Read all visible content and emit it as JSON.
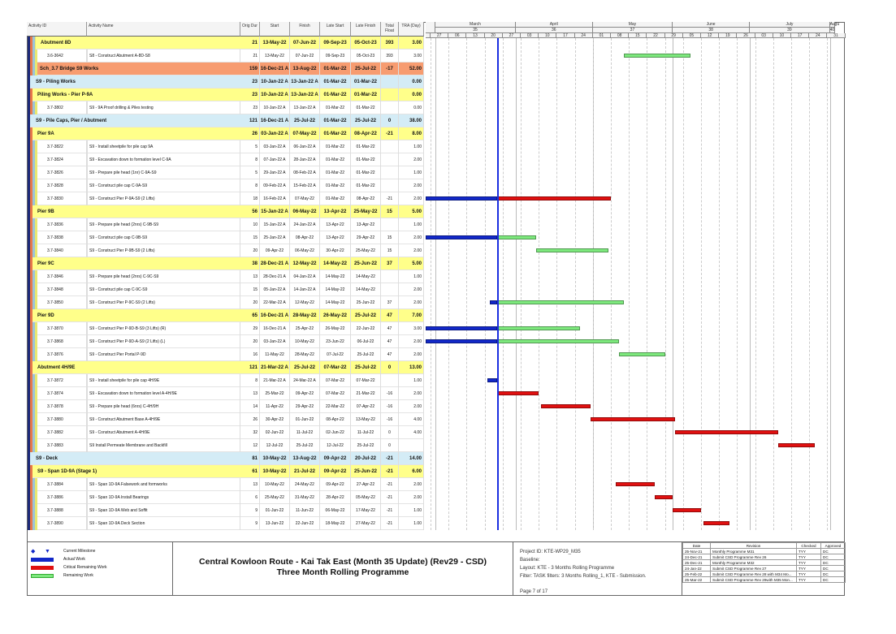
{
  "headers": {
    "id": "Activity ID",
    "name": "Activity Name",
    "dur": "Orig Dur",
    "start": "Start",
    "finish": "Finish",
    "ls": "Late Start",
    "lf": "Late Finish",
    "tf": "Total Float",
    "tra": "TRA (Day)"
  },
  "timeline": {
    "months": [
      {
        "label": "March",
        "week": "35",
        "from": "2022-03-01",
        "to": "2022-04-01"
      },
      {
        "label": "April",
        "week": "36",
        "from": "2022-04-01",
        "to": "2022-05-01"
      },
      {
        "label": "May",
        "week": "37",
        "from": "2022-05-01",
        "to": "2022-06-01"
      },
      {
        "label": "June",
        "week": "38",
        "from": "2022-06-01",
        "to": "2022-07-01"
      },
      {
        "label": "July",
        "week": "39",
        "from": "2022-07-01",
        "to": "2022-08-01"
      },
      {
        "label": "Augu",
        "week": "40",
        "from": "2022-08-01",
        "to": "2022-08-03"
      }
    ],
    "weeks": [
      "27",
      "06",
      "13",
      "20",
      "27",
      "03",
      "10",
      "17",
      "24",
      "01",
      "08",
      "15",
      "22",
      "29",
      "05",
      "12",
      "19",
      "26",
      "03",
      "10",
      "17",
      "24",
      "31"
    ],
    "first_week": "2022-02-27",
    "data_date": "2022-03-25"
  },
  "colors": {
    "actual": "#1228c8",
    "critical": "#e01010",
    "remaining": "#7de87d",
    "data_date": "#1a2ee0",
    "yellow": "#ffff8a",
    "orange": "#f79c70",
    "blue": "#d4ecf6"
  },
  "rows": [
    {
      "t": "y",
      "lv": 4,
      "name": "Abutment 8D",
      "dur": "21",
      "start": "13-May-22",
      "finish": "07-Jun-22",
      "ls": "09-Sep-23",
      "lf": "05-Oct-23",
      "tf": "393",
      "tra": "3.00"
    },
    {
      "id": "3.6-3642",
      "name": "S8 - Construct Abutment A-8D-S8",
      "dur": "21",
      "start": "13-May-22",
      "finish": "07-Jun-22",
      "ls": "09-Sep-23",
      "lf": "05-Oct-23",
      "tf": "393",
      "tra": "3.00"
    },
    {
      "t": "o",
      "lv": 1,
      "name": "Sch_3.7 Bridge S9 Works",
      "dur": "159",
      "start": "16-Dec-21 A",
      "finish": "13-Aug-22",
      "ls": "01-Mar-22",
      "lf": "25-Jul-22",
      "tf": "-17",
      "tra": "52.00"
    },
    {
      "t": "b",
      "lv": 2,
      "name": "S9 - Piling Works",
      "dur": "23",
      "start": "10-Jan-22 A",
      "finish": "13-Jan-22 A",
      "ls": "01-Mar-22",
      "lf": "01-Mar-22",
      "tf": "",
      "tra": "0.00"
    },
    {
      "t": "y",
      "lv": 3,
      "name": "Piling Works - Pier P-9A",
      "dur": "23",
      "start": "10-Jan-22 A",
      "finish": "13-Jan-22 A",
      "ls": "01-Mar-22",
      "lf": "01-Mar-22",
      "tf": "",
      "tra": "0.00"
    },
    {
      "id": "3.7-3802",
      "name": "S9 - 9A Proof drilling & Piles testing",
      "dur": "23",
      "start": "10-Jan-22 A",
      "finish": "13-Jan-22 A",
      "ls": "01-Mar-22",
      "lf": "01-Mar-22",
      "tf": "",
      "tra": "0.00"
    },
    {
      "t": "b",
      "lv": 2,
      "name": "S9 - Pile Caps, Pier / Abutment",
      "dur": "121",
      "start": "16-Dec-21 A",
      "finish": "25-Jul-22",
      "ls": "01-Mar-22",
      "lf": "25-Jul-22",
      "tf": "0",
      "tra": "38.00"
    },
    {
      "t": "y",
      "lv": 3,
      "name": "Pier 9A",
      "dur": "26",
      "start": "03-Jan-22 A",
      "finish": "07-May-22",
      "ls": "01-Mar-22",
      "lf": "08-Apr-22",
      "tf": "-21",
      "tra": "8.00"
    },
    {
      "id": "3.7-3822",
      "name": "S9 - Install sheetpile for pile cap 9A",
      "dur": "5",
      "start": "03-Jan-22 A",
      "finish": "06-Jan-22 A",
      "ls": "01-Mar-22",
      "lf": "01-Mar-22",
      "tf": "",
      "tra": "1.00"
    },
    {
      "id": "3.7-3824",
      "name": "S9 - Excavation down to formation level C-9A",
      "dur": "8",
      "start": "07-Jan-22 A",
      "finish": "28-Jan-22 A",
      "ls": "01-Mar-22",
      "lf": "01-Mar-22",
      "tf": "",
      "tra": "2.00"
    },
    {
      "id": "3.7-3826",
      "name": "S9 - Prepare pile head (1nr) C-9A-S9",
      "dur": "5",
      "start": "29-Jan-22 A",
      "finish": "08-Feb-22 A",
      "ls": "01-Mar-22",
      "lf": "01-Mar-22",
      "tf": "",
      "tra": "1.00"
    },
    {
      "id": "3.7-3828",
      "name": "S9 - Construct pile cap C-9A-S9",
      "dur": "8",
      "start": "09-Feb-22 A",
      "finish": "15-Feb-22 A",
      "ls": "01-Mar-22",
      "lf": "01-Mar-22",
      "tf": "",
      "tra": "2.00"
    },
    {
      "id": "3.7-3830",
      "name": "S9 - Construct Pier P-9A-S9 (2 Lifts)",
      "dur": "18",
      "start": "16-Feb-22 A",
      "finish": "07-May-22",
      "ls": "01-Mar-22",
      "lf": "08-Apr-22",
      "tf": "-21",
      "tra": "2.00"
    },
    {
      "t": "y",
      "lv": 3,
      "name": "Pier 9B",
      "dur": "56",
      "start": "15-Jan-22 A",
      "finish": "06-May-22",
      "ls": "13-Apr-22",
      "lf": "25-May-22",
      "tf": "15",
      "tra": "5.00"
    },
    {
      "id": "3.7-3836",
      "name": "S9 - Prepare pile head (2nrs) C-9B-S9",
      "dur": "10",
      "start": "15-Jan-22 A",
      "finish": "24-Jan-22 A",
      "ls": "13-Apr-22",
      "lf": "13-Apr-22",
      "tf": "",
      "tra": "1.00"
    },
    {
      "id": "3.7-3838",
      "name": "S9 - Construct pile cap C-9B-S9",
      "dur": "15",
      "start": "25-Jan-22 A",
      "finish": "08-Apr-22",
      "ls": "13-Apr-22",
      "lf": "29-Apr-22",
      "tf": "15",
      "tra": "2.00"
    },
    {
      "id": "3.7-3840",
      "name": "S9 - Construct Pier P-9B-S9 (2 Lifts)",
      "dur": "20",
      "start": "09-Apr-22",
      "finish": "06-May-22",
      "ls": "30-Apr-22",
      "lf": "25-May-22",
      "tf": "15",
      "tra": "2.00"
    },
    {
      "t": "y",
      "lv": 3,
      "name": "Pier 9C",
      "dur": "38",
      "start": "28-Dec-21 A",
      "finish": "12-May-22",
      "ls": "14-May-22",
      "lf": "25-Jun-22",
      "tf": "37",
      "tra": "5.00"
    },
    {
      "id": "3.7-3846",
      "name": "S9 - Prepare pile head (2nrs) C-9C-S9",
      "dur": "13",
      "start": "28-Dec-21 A",
      "finish": "04-Jan-22 A",
      "ls": "14-May-22",
      "lf": "14-May-22",
      "tf": "",
      "tra": "1.00"
    },
    {
      "id": "3.7-3848",
      "name": "S9 - Construct pile cap C-9C-S9",
      "dur": "15",
      "start": "05-Jan-22 A",
      "finish": "14-Jan-22 A",
      "ls": "14-May-22",
      "lf": "14-May-22",
      "tf": "",
      "tra": "2.00"
    },
    {
      "id": "3.7-3850",
      "name": "S9 - Construct Pier P-9C-S9 (2 Lifts)",
      "dur": "20",
      "start": "22-Mar-22 A",
      "finish": "12-May-22",
      "ls": "14-May-22",
      "lf": "25-Jun-22",
      "tf": "37",
      "tra": "2.00"
    },
    {
      "t": "y",
      "lv": 3,
      "name": "Pier 9D",
      "dur": "65",
      "start": "16-Dec-21 A",
      "finish": "28-May-22",
      "ls": "26-May-22",
      "lf": "25-Jul-22",
      "tf": "47",
      "tra": "7.00"
    },
    {
      "id": "3.7-3870",
      "name": "S9 - Construct Pier P-9D-B-S9 (3 Lifts) (R)",
      "dur": "29",
      "start": "16-Dec-21 A",
      "finish": "25-Apr-22",
      "ls": "26-May-22",
      "lf": "22-Jun-22",
      "tf": "47",
      "tra": "3.00"
    },
    {
      "id": "3.7-3868",
      "name": "S9 - Construct Pier P-9D-A-S9 (2 Lifts) (L)",
      "dur": "20",
      "start": "03-Jan-22 A",
      "finish": "10-May-22",
      "ls": "23-Jun-22",
      "lf": "06-Jul-22",
      "tf": "47",
      "tra": "2.00"
    },
    {
      "id": "3.7-3876",
      "name": "S9 - Construct Pier Portal P-9D",
      "dur": "16",
      "start": "11-May-22",
      "finish": "28-May-22",
      "ls": "07-Jul-22",
      "lf": "25-Jul-22",
      "tf": "47",
      "tra": "2.00"
    },
    {
      "t": "y",
      "lv": 3,
      "name": "Abutment 4H/9E",
      "dur": "121",
      "start": "21-Mar-22 A",
      "finish": "25-Jul-22",
      "ls": "07-Mar-22",
      "lf": "25-Jul-22",
      "tf": "0",
      "tra": "13.00"
    },
    {
      "id": "3.7-3872",
      "name": "S9 - Install sheetpile for pile cap 4H/9E",
      "dur": "8",
      "start": "21-Mar-22 A",
      "finish": "24-Mar-22 A",
      "ls": "07-Mar-22",
      "lf": "07-Mar-22",
      "tf": "",
      "tra": "1.00"
    },
    {
      "id": "3.7-3874",
      "name": "S9 - Excavation down to formation level A-4H/9E",
      "dur": "13",
      "start": "25-Mar-22",
      "finish": "09-Apr-22",
      "ls": "07-Mar-22",
      "lf": "21-Mar-22",
      "tf": "-16",
      "tra": "2.00"
    },
    {
      "id": "3.7-3878",
      "name": "S9 - Prepare pile head (6nrs) C-4H/9H",
      "dur": "14",
      "start": "11-Apr-22",
      "finish": "29-Apr-22",
      "ls": "22-Mar-22",
      "lf": "07-Apr-22",
      "tf": "-16",
      "tra": "2.00"
    },
    {
      "id": "3.7-3880",
      "name": "S9 - Construct Abutment Base A-4H/9E",
      "dur": "26",
      "start": "30-Apr-22",
      "finish": "01-Jun-22",
      "ls": "08-Apr-22",
      "lf": "13-May-22",
      "tf": "-16",
      "tra": "4.00"
    },
    {
      "id": "3.7-3882",
      "name": "S9 - Construct Abutment A-4H/9E",
      "dur": "32",
      "start": "02-Jun-22",
      "finish": "11-Jul-22",
      "ls": "02-Jun-22",
      "lf": "11-Jul-22",
      "tf": "0",
      "tra": "4.00"
    },
    {
      "id": "3.7-3883",
      "name": "S9 Install Permeate Membrane and Backfill",
      "dur": "12",
      "start": "12-Jul-22",
      "finish": "25-Jul-22",
      "ls": "12-Jul-22",
      "lf": "25-Jul-22",
      "tf": "0",
      "tra": ""
    },
    {
      "t": "b",
      "lv": 2,
      "name": "S9 - Deck",
      "dur": "81",
      "start": "10-May-22",
      "finish": "13-Aug-22",
      "ls": "09-Apr-22",
      "lf": "20-Jul-22",
      "tf": "-21",
      "tra": "14.00"
    },
    {
      "t": "y",
      "lv": 3,
      "name": "S9 - Span 1D-9A (Stage 1)",
      "dur": "61",
      "start": "10-May-22",
      "finish": "21-Jul-22",
      "ls": "09-Apr-22",
      "lf": "25-Jun-22",
      "tf": "-21",
      "tra": "6.00"
    },
    {
      "id": "3.7-3884",
      "name": "S9 - Span 1D-9A Falsework and formworks",
      "dur": "13",
      "start": "10-May-22",
      "finish": "24-May-22",
      "ls": "09-Apr-22",
      "lf": "27-Apr-22",
      "tf": "-21",
      "tra": "2.00"
    },
    {
      "id": "3.7-3886",
      "name": "S9 - Span 1D-9A Install Bearings",
      "dur": "6",
      "start": "25-May-22",
      "finish": "31-May-22",
      "ls": "28-Apr-22",
      "lf": "05-May-22",
      "tf": "-21",
      "tra": "2.00"
    },
    {
      "id": "3.7-3888",
      "name": "S9 - Span 1D-9A Web and Soffit",
      "dur": "9",
      "start": "01-Jun-22",
      "finish": "11-Jun-22",
      "ls": "06-May-22",
      "lf": "17-May-22",
      "tf": "-21",
      "tra": "1.00"
    },
    {
      "id": "3.7-3890",
      "name": "S9 - Span 1D-9A Deck Section",
      "dur": "9",
      "start": "13-Jun-22",
      "finish": "22-Jun-22",
      "ls": "18-May-22",
      "lf": "27-May-22",
      "tf": "-21",
      "tra": "1.00"
    }
  ],
  "legend": {
    "milestone": "Current Milestone",
    "actual": "Actual Work",
    "critical": "Critical Remaining Work",
    "remaining": "Remaining Work"
  },
  "title": {
    "line1": "Central Kowloon Route - Kai Tak East (Month 35 Update) (Rev29 - CSD)",
    "line2": "Three Month Rolling Programme"
  },
  "info": {
    "project": "Project ID: KTE-WP29_M35",
    "baseline": "Baseline:",
    "layout": "Layout: KTE - 3 Months Rolling Programme",
    "filter": "Filter: TASK filters: 3 Months Rolling_1, KTE - Submission.",
    "page": "Page 7 of 17"
  },
  "revisions": {
    "headers": [
      "Date",
      "Revision",
      "Checked",
      "Approved"
    ],
    "rows": [
      [
        "25-Nov-21",
        "Monthly Programme M31",
        "TYY",
        "DC"
      ],
      [
        "24-Dec-21",
        "Submit CSD Programme Rev 26",
        "TYY",
        "DC"
      ],
      [
        "25-Dec-21",
        "Monthly Programme M32",
        "TYY",
        "DC"
      ],
      [
        "24-Jan-22",
        "Submit CSD Programme Rev 27",
        "TYY",
        "DC"
      ],
      [
        "25-Feb-22",
        "Submit CSD Programme Rev 28 with M34 Mo...",
        "TYY",
        "DC"
      ],
      [
        "25-Mar-22",
        "Submit CSD Programme Rev 29with M35 Mon...",
        "TYY",
        "DC"
      ]
    ]
  }
}
